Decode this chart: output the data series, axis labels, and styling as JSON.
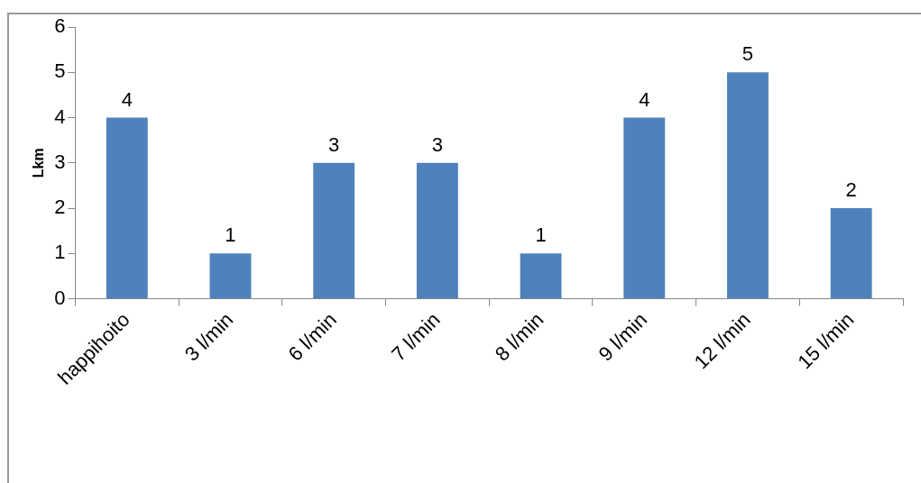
{
  "chart_data": {
    "type": "bar",
    "ylabel": "Lkm",
    "categories": [
      "happihoito",
      "3 l/min",
      "6 l/min",
      "7 l/min",
      "8 l/min",
      "9 l/min",
      "12 l/min",
      "15 l/min"
    ],
    "values": [
      4,
      1,
      3,
      3,
      1,
      4,
      5,
      2
    ],
    "color": "#4f81bd",
    "ylim": [
      0,
      6
    ],
    "yticks": [
      0,
      1,
      2,
      3,
      4,
      5,
      6
    ],
    "grid": false,
    "legend": false,
    "data_labels": true
  }
}
